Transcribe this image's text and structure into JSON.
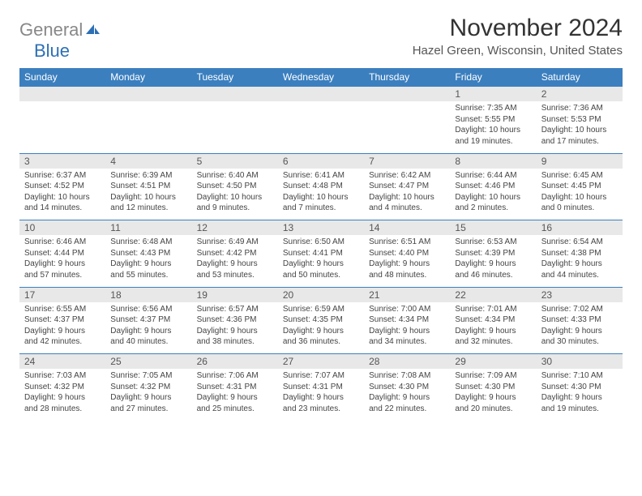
{
  "logo": {
    "gray": "General",
    "blue": "Blue"
  },
  "title": "November 2024",
  "location": "Hazel Green, Wisconsin, United States",
  "colors": {
    "header_bg": "#3b7fbf",
    "header_text": "#ffffff",
    "daynum_bg": "#e8e8e8",
    "border": "#3b7fbf",
    "logo_gray": "#888888",
    "logo_blue": "#2d6fb5"
  },
  "day_headers": [
    "Sunday",
    "Monday",
    "Tuesday",
    "Wednesday",
    "Thursday",
    "Friday",
    "Saturday"
  ],
  "weeks": [
    [
      null,
      null,
      null,
      null,
      null,
      {
        "n": "1",
        "sr": "Sunrise: 7:35 AM",
        "ss": "Sunset: 5:55 PM",
        "d1": "Daylight: 10 hours",
        "d2": "and 19 minutes."
      },
      {
        "n": "2",
        "sr": "Sunrise: 7:36 AM",
        "ss": "Sunset: 5:53 PM",
        "d1": "Daylight: 10 hours",
        "d2": "and 17 minutes."
      }
    ],
    [
      {
        "n": "3",
        "sr": "Sunrise: 6:37 AM",
        "ss": "Sunset: 4:52 PM",
        "d1": "Daylight: 10 hours",
        "d2": "and 14 minutes."
      },
      {
        "n": "4",
        "sr": "Sunrise: 6:39 AM",
        "ss": "Sunset: 4:51 PM",
        "d1": "Daylight: 10 hours",
        "d2": "and 12 minutes."
      },
      {
        "n": "5",
        "sr": "Sunrise: 6:40 AM",
        "ss": "Sunset: 4:50 PM",
        "d1": "Daylight: 10 hours",
        "d2": "and 9 minutes."
      },
      {
        "n": "6",
        "sr": "Sunrise: 6:41 AM",
        "ss": "Sunset: 4:48 PM",
        "d1": "Daylight: 10 hours",
        "d2": "and 7 minutes."
      },
      {
        "n": "7",
        "sr": "Sunrise: 6:42 AM",
        "ss": "Sunset: 4:47 PM",
        "d1": "Daylight: 10 hours",
        "d2": "and 4 minutes."
      },
      {
        "n": "8",
        "sr": "Sunrise: 6:44 AM",
        "ss": "Sunset: 4:46 PM",
        "d1": "Daylight: 10 hours",
        "d2": "and 2 minutes."
      },
      {
        "n": "9",
        "sr": "Sunrise: 6:45 AM",
        "ss": "Sunset: 4:45 PM",
        "d1": "Daylight: 10 hours",
        "d2": "and 0 minutes."
      }
    ],
    [
      {
        "n": "10",
        "sr": "Sunrise: 6:46 AM",
        "ss": "Sunset: 4:44 PM",
        "d1": "Daylight: 9 hours",
        "d2": "and 57 minutes."
      },
      {
        "n": "11",
        "sr": "Sunrise: 6:48 AM",
        "ss": "Sunset: 4:43 PM",
        "d1": "Daylight: 9 hours",
        "d2": "and 55 minutes."
      },
      {
        "n": "12",
        "sr": "Sunrise: 6:49 AM",
        "ss": "Sunset: 4:42 PM",
        "d1": "Daylight: 9 hours",
        "d2": "and 53 minutes."
      },
      {
        "n": "13",
        "sr": "Sunrise: 6:50 AM",
        "ss": "Sunset: 4:41 PM",
        "d1": "Daylight: 9 hours",
        "d2": "and 50 minutes."
      },
      {
        "n": "14",
        "sr": "Sunrise: 6:51 AM",
        "ss": "Sunset: 4:40 PM",
        "d1": "Daylight: 9 hours",
        "d2": "and 48 minutes."
      },
      {
        "n": "15",
        "sr": "Sunrise: 6:53 AM",
        "ss": "Sunset: 4:39 PM",
        "d1": "Daylight: 9 hours",
        "d2": "and 46 minutes."
      },
      {
        "n": "16",
        "sr": "Sunrise: 6:54 AM",
        "ss": "Sunset: 4:38 PM",
        "d1": "Daylight: 9 hours",
        "d2": "and 44 minutes."
      }
    ],
    [
      {
        "n": "17",
        "sr": "Sunrise: 6:55 AM",
        "ss": "Sunset: 4:37 PM",
        "d1": "Daylight: 9 hours",
        "d2": "and 42 minutes."
      },
      {
        "n": "18",
        "sr": "Sunrise: 6:56 AM",
        "ss": "Sunset: 4:37 PM",
        "d1": "Daylight: 9 hours",
        "d2": "and 40 minutes."
      },
      {
        "n": "19",
        "sr": "Sunrise: 6:57 AM",
        "ss": "Sunset: 4:36 PM",
        "d1": "Daylight: 9 hours",
        "d2": "and 38 minutes."
      },
      {
        "n": "20",
        "sr": "Sunrise: 6:59 AM",
        "ss": "Sunset: 4:35 PM",
        "d1": "Daylight: 9 hours",
        "d2": "and 36 minutes."
      },
      {
        "n": "21",
        "sr": "Sunrise: 7:00 AM",
        "ss": "Sunset: 4:34 PM",
        "d1": "Daylight: 9 hours",
        "d2": "and 34 minutes."
      },
      {
        "n": "22",
        "sr": "Sunrise: 7:01 AM",
        "ss": "Sunset: 4:34 PM",
        "d1": "Daylight: 9 hours",
        "d2": "and 32 minutes."
      },
      {
        "n": "23",
        "sr": "Sunrise: 7:02 AM",
        "ss": "Sunset: 4:33 PM",
        "d1": "Daylight: 9 hours",
        "d2": "and 30 minutes."
      }
    ],
    [
      {
        "n": "24",
        "sr": "Sunrise: 7:03 AM",
        "ss": "Sunset: 4:32 PM",
        "d1": "Daylight: 9 hours",
        "d2": "and 28 minutes."
      },
      {
        "n": "25",
        "sr": "Sunrise: 7:05 AM",
        "ss": "Sunset: 4:32 PM",
        "d1": "Daylight: 9 hours",
        "d2": "and 27 minutes."
      },
      {
        "n": "26",
        "sr": "Sunrise: 7:06 AM",
        "ss": "Sunset: 4:31 PM",
        "d1": "Daylight: 9 hours",
        "d2": "and 25 minutes."
      },
      {
        "n": "27",
        "sr": "Sunrise: 7:07 AM",
        "ss": "Sunset: 4:31 PM",
        "d1": "Daylight: 9 hours",
        "d2": "and 23 minutes."
      },
      {
        "n": "28",
        "sr": "Sunrise: 7:08 AM",
        "ss": "Sunset: 4:30 PM",
        "d1": "Daylight: 9 hours",
        "d2": "and 22 minutes."
      },
      {
        "n": "29",
        "sr": "Sunrise: 7:09 AM",
        "ss": "Sunset: 4:30 PM",
        "d1": "Daylight: 9 hours",
        "d2": "and 20 minutes."
      },
      {
        "n": "30",
        "sr": "Sunrise: 7:10 AM",
        "ss": "Sunset: 4:30 PM",
        "d1": "Daylight: 9 hours",
        "d2": "and 19 minutes."
      }
    ]
  ]
}
